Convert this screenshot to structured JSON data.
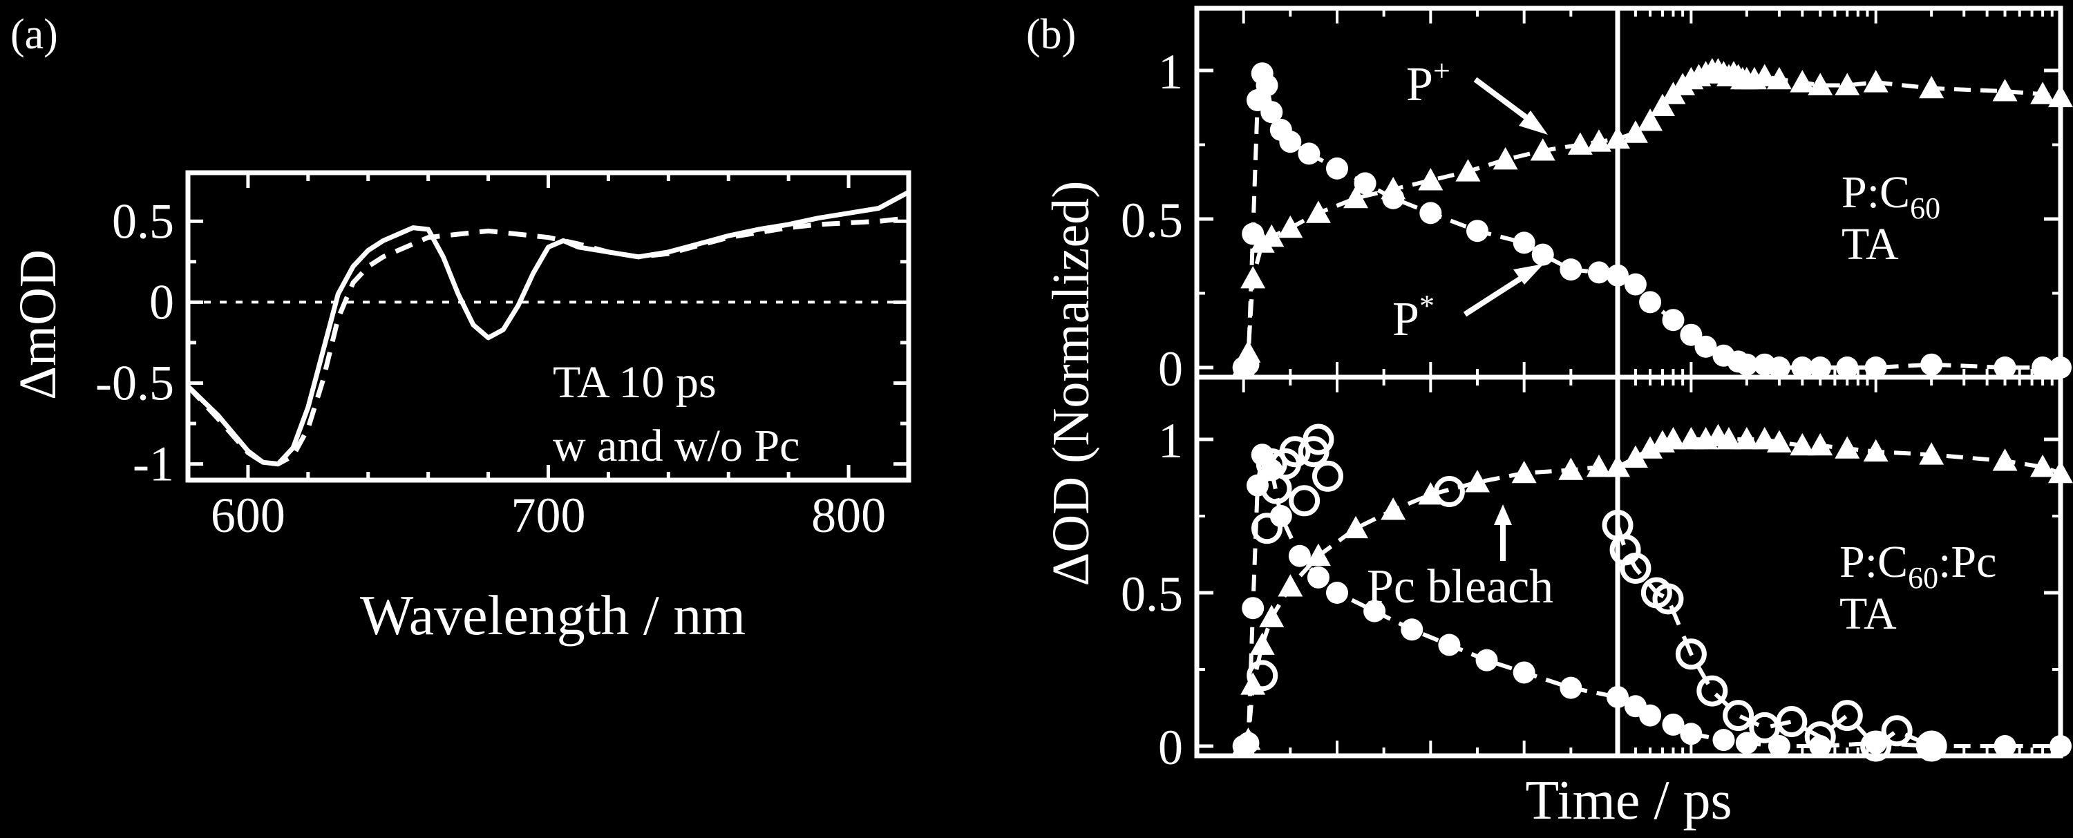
{
  "colors": {
    "background": "#000000",
    "ink": "#ffffff"
  },
  "chart_data": [
    {
      "panel_label": "(a)",
      "type": "line",
      "xlabel": "Wavelength / nm",
      "ylabel": "ΔmOD",
      "xlim": [
        580,
        820
      ],
      "ylim": [
        -1.1,
        0.8
      ],
      "xticks": [
        600,
        700,
        800
      ],
      "xtick_labels": [
        "600",
        "700",
        "800"
      ],
      "yticks": [
        0.5,
        0,
        -0.5,
        -1
      ],
      "ytick_labels": [
        "0.5",
        "0",
        "-0.5",
        "-1"
      ],
      "annotations": [
        "TA 10 ps",
        "w and w/o Pc"
      ],
      "zero_line": "dotted",
      "series": [
        {
          "style": "solid",
          "x": [
            580,
            590,
            600,
            605,
            610,
            615,
            620,
            625,
            630,
            635,
            640,
            645,
            650,
            655,
            660,
            665,
            670,
            675,
            680,
            685,
            690,
            695,
            700,
            705,
            710,
            720,
            730,
            740,
            750,
            760,
            770,
            780,
            790,
            800,
            810,
            820
          ],
          "y": [
            -0.52,
            -0.7,
            -0.92,
            -0.99,
            -1.0,
            -0.9,
            -0.65,
            -0.3,
            0.05,
            0.22,
            0.32,
            0.38,
            0.42,
            0.46,
            0.45,
            0.28,
            0.05,
            -0.14,
            -0.22,
            -0.17,
            -0.02,
            0.18,
            0.34,
            0.38,
            0.34,
            0.31,
            0.28,
            0.31,
            0.36,
            0.41,
            0.45,
            0.48,
            0.52,
            0.55,
            0.58,
            0.68
          ]
        },
        {
          "style": "dashed",
          "x": [
            580,
            590,
            600,
            605,
            610,
            615,
            620,
            625,
            630,
            635,
            640,
            645,
            650,
            655,
            660,
            670,
            680,
            690,
            700,
            710,
            720,
            730,
            740,
            750,
            760,
            770,
            780,
            790,
            800,
            810,
            820
          ],
          "y": [
            -0.52,
            -0.72,
            -0.93,
            -0.99,
            -1.0,
            -0.95,
            -0.78,
            -0.48,
            -0.1,
            0.12,
            0.22,
            0.28,
            0.32,
            0.36,
            0.4,
            0.42,
            0.44,
            0.42,
            0.4,
            0.36,
            0.31,
            0.28,
            0.3,
            0.35,
            0.4,
            0.43,
            0.46,
            0.48,
            0.49,
            0.5,
            0.52
          ]
        }
      ]
    },
    {
      "panel_label": "(b)",
      "type": "scatter",
      "xlabel": "Time / ps",
      "ylabel": "ΔOD (Normalized)",
      "ytick_labels": [
        "0",
        "0.5",
        "1"
      ],
      "subpanels": [
        {
          "name": "top",
          "annotations": [
            "P:C60",
            "TA",
            "P+",
            "P*"
          ],
          "ylim": [
            0,
            1.1
          ],
          "series": [
            {
              "label": "P+",
              "marker": "triangle",
              "t": [
                0.0,
                0.05,
                0.1,
                0.2,
                0.3,
                0.5,
                0.8,
                1.2,
                1.6,
                2.0,
                2.4,
                2.8,
                3.2,
                3.6,
                3.8,
                4.0,
                5,
                6,
                7,
                8,
                9,
                10,
                11,
                12,
                13,
                14,
                15,
                16,
                17,
                18,
                19,
                20,
                22,
                25,
                30,
                40,
                50,
                70,
                100,
                200,
                500,
                800,
                1000
              ],
              "y": [
                0,
                0.05,
                0.3,
                0.42,
                0.44,
                0.47,
                0.52,
                0.57,
                0.6,
                0.63,
                0.66,
                0.7,
                0.73,
                0.75,
                0.76,
                0.77,
                0.79,
                0.83,
                0.88,
                0.92,
                0.95,
                0.97,
                0.98,
                0.99,
                1.0,
                1.0,
                0.99,
                0.98,
                0.99,
                0.98,
                0.97,
                0.97,
                0.97,
                0.98,
                0.97,
                0.96,
                0.95,
                0.95,
                0.96,
                0.94,
                0.93,
                0.92,
                0.91
              ]
            },
            {
              "label": "P*",
              "marker": "circle",
              "t": [
                0.0,
                0.05,
                0.1,
                0.15,
                0.2,
                0.25,
                0.3,
                0.4,
                0.5,
                0.7,
                1.0,
                1.3,
                1.6,
                2.0,
                2.5,
                3.0,
                3.2,
                3.5,
                3.8,
                4.0,
                5,
                6,
                8,
                10,
                12,
                15,
                18,
                20,
                25,
                30,
                40,
                50,
                70,
                100,
                200,
                500,
                800,
                1000
              ],
              "y": [
                0,
                0.01,
                0.45,
                0.9,
                0.99,
                0.95,
                0.86,
                0.8,
                0.76,
                0.72,
                0.67,
                0.62,
                0.57,
                0.52,
                0.46,
                0.42,
                0.38,
                0.33,
                0.32,
                0.31,
                0.28,
                0.22,
                0.16,
                0.11,
                0.07,
                0.04,
                0.02,
                0.01,
                0.01,
                0.0,
                0.0,
                0.0,
                0.0,
                0.0,
                0.01,
                0.0,
                0.0,
                0.0
              ]
            }
          ]
        },
        {
          "name": "bottom",
          "annotations": [
            "P:C60:Pc",
            "TA",
            "Pc bleach"
          ],
          "ylim": [
            0,
            1.1
          ],
          "series": [
            {
              "label": "P+",
              "marker": "triangle",
              "t": [
                0.0,
                0.05,
                0.1,
                0.2,
                0.3,
                0.5,
                0.8,
                1.2,
                1.6,
                2.0,
                2.5,
                3.0,
                3.5,
                3.8,
                4.0,
                5,
                6,
                7,
                8,
                10,
                12,
                14,
                16,
                20,
                25,
                30,
                40,
                50,
                70,
                100,
                200,
                500,
                800,
                1000
              ],
              "y": [
                0,
                0.02,
                0.2,
                0.33,
                0.42,
                0.52,
                0.62,
                0.71,
                0.77,
                0.82,
                0.86,
                0.89,
                0.9,
                0.91,
                0.91,
                0.94,
                0.97,
                0.99,
                1.0,
                1.0,
                1.0,
                1.01,
                1.0,
                1.0,
                1.0,
                0.99,
                0.98,
                0.98,
                0.97,
                0.96,
                0.95,
                0.93,
                0.91,
                0.89
              ]
            },
            {
              "label": "P*",
              "marker": "circle",
              "t": [
                0.0,
                0.05,
                0.1,
                0.15,
                0.2,
                0.3,
                0.4,
                0.6,
                0.8,
                1.0,
                1.4,
                1.8,
                2.2,
                2.6,
                3.0,
                3.5,
                4.0,
                5,
                6,
                8,
                10,
                15,
                20,
                30,
                50,
                100,
                200,
                500,
                1000
              ],
              "y": [
                0,
                0.01,
                0.45,
                0.85,
                0.95,
                0.9,
                0.75,
                0.62,
                0.55,
                0.5,
                0.44,
                0.38,
                0.33,
                0.28,
                0.24,
                0.19,
                0.16,
                0.13,
                0.1,
                0.07,
                0.04,
                0.02,
                0.01,
                0.0,
                0.0,
                0.01,
                0.0,
                0.0,
                0.0
              ]
            },
            {
              "label": "Pc bleach",
              "marker": "open-circle",
              "t": [
                0.2,
                0.25,
                0.3,
                0.35,
                0.45,
                0.55,
                0.65,
                0.75,
                0.8,
                0.9,
                2.2,
                4.0,
                4.4,
                5,
                6.5,
                7.5,
                10,
                13,
                18,
                25,
                35,
                50,
                70,
                100,
                130,
                200
              ],
              "y": [
                0.23,
                0.71,
                0.92,
                0.84,
                0.92,
                0.96,
                0.8,
                0.96,
                1.0,
                0.88,
                0.83,
                0.72,
                0.64,
                0.58,
                0.5,
                0.48,
                0.3,
                0.18,
                0.1,
                0.06,
                0.08,
                0.03,
                0.1,
                0.0,
                0.05,
                0.0
              ]
            }
          ]
        }
      ]
    }
  ],
  "labels": {
    "panel_a": "(a)",
    "panel_b": "(b)",
    "a_note1": "TA 10 ps",
    "a_note2": "w and w/o Pc",
    "a_ylabel": "ΔmOD",
    "a_xlabel": "Wavelength / nm",
    "b_ylabel": "ΔOD (Normalized)",
    "b_xlabel": "Time / ps",
    "top_sample_pre": "P:C",
    "top_sample_sub": "60",
    "top_mode": "TA",
    "bot_sample_pre": "P:C",
    "bot_sample_sub": "60",
    "bot_sample_post": ":Pc",
    "bot_mode": "TA",
    "pplus": "P",
    "pplus_sup": "+",
    "pstar": "P",
    "pstar_sup": "*",
    "pc_bleach": "Pc bleach"
  }
}
